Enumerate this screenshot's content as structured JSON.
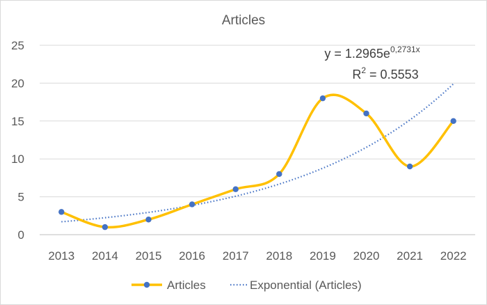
{
  "chart_data": {
    "type": "line",
    "title": "Articles",
    "categories": [
      "2013",
      "2014",
      "2015",
      "2016",
      "2017",
      "2018",
      "2019",
      "2020",
      "2021",
      "2022"
    ],
    "series": [
      {
        "name": "Articles",
        "values": [
          3,
          1,
          2,
          4,
          6,
          8,
          18,
          16,
          9,
          15
        ],
        "color": "#FFC000",
        "marker_color": "#4472C4",
        "smooth": true
      }
    ],
    "trendline": {
      "name": "Exponential (Articles)",
      "type": "exponential",
      "a": 1.2965,
      "b": 0.2731,
      "color": "#4472C4",
      "equation_base": "y = 1.2965e",
      "equation_exponent": "0,2731x",
      "r2_prefix": "R",
      "r2_sup": "2",
      "r2_suffix": " = 0.5553"
    },
    "y_ticks": [
      "0",
      "5",
      "10",
      "15",
      "20",
      "25"
    ],
    "ylim": [
      0,
      25
    ],
    "grid": true,
    "legend_position": "bottom",
    "xlabel": "",
    "ylabel": ""
  }
}
